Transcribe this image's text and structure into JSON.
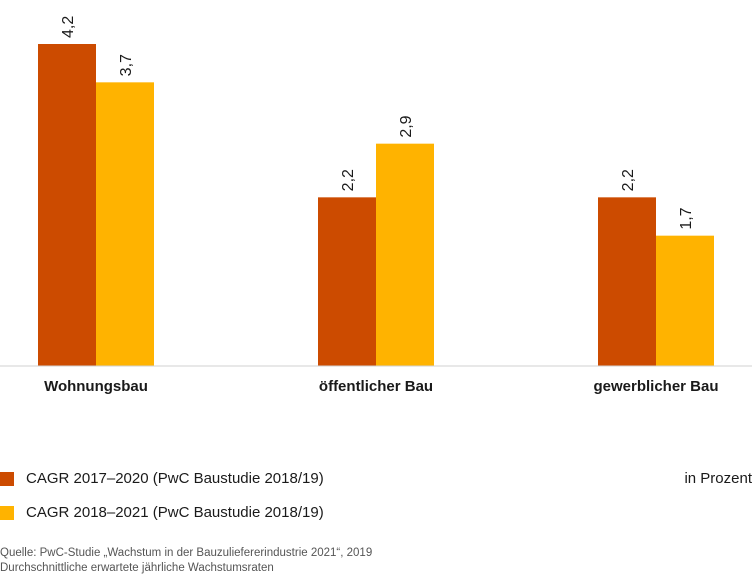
{
  "chart_data": {
    "type": "bar",
    "categories": [
      "Wohnungsbau",
      "öffentlicher Bau",
      "gewerblicher Bau"
    ],
    "series": [
      {
        "name": "CAGR 2017–2020 (PwC Baustudie 2018/19)",
        "color": "#cc4b00",
        "values": [
          4.2,
          2.2,
          2.2
        ],
        "labels": [
          "4,2",
          "2,2",
          "2,2"
        ]
      },
      {
        "name": "CAGR 2018–2021 (PwC Baustudie 2018/19)",
        "color": "#ffb300",
        "values": [
          3.7,
          2.9,
          1.7
        ],
        "labels": [
          "3,7",
          "2,9",
          "1,7"
        ]
      }
    ],
    "ylim": [
      0,
      4.2
    ],
    "unit": "in Prozent",
    "grid": false,
    "legend_position": "bottom-left"
  },
  "footer": {
    "source": "Quelle: PwC-Studie „Wachstum in der Bauzuliefererindustrie 2021“, 2019",
    "note": "Durchschnittliche erwartete jährliche Wachstumsraten"
  }
}
